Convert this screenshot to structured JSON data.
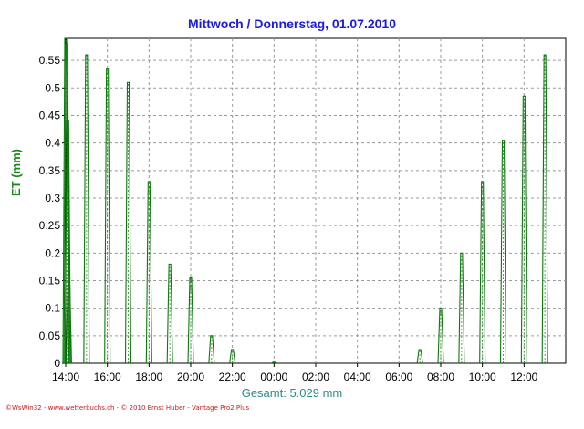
{
  "chart_data": {
    "type": "line",
    "title": "Mittwoch / Donnerstag, 01.07.2010",
    "ylabel": "ET (mm)",
    "xlabel": "",
    "summary_label": "Gesamt: 5.029 mm",
    "credit": "©WsWin32 - www.wetterbuchs.ch - © 2010 Ernst Huber - Vantage Pro2 Plus",
    "ylim": [
      0,
      0.59
    ],
    "y_ticks": [
      0,
      0.05,
      0.1,
      0.15,
      0.2,
      0.25,
      0.3,
      0.35,
      0.4,
      0.45,
      0.5,
      0.55
    ],
    "y_tick_labels": [
      "0",
      "0.05",
      "0.1",
      "0.15",
      "0.2",
      "0.25",
      "0.3",
      "0.35",
      "0.4",
      "0.45",
      "0.5",
      "0.55"
    ],
    "x_tick_labels": [
      "14:00",
      "16:00",
      "18:00",
      "20:00",
      "22:00",
      "00:00",
      "02:00",
      "04:00",
      "06:00",
      "08:00",
      "10:00",
      "12:00"
    ],
    "x_ticks_hours": [
      0,
      2,
      4,
      6,
      8,
      10,
      12,
      14,
      16,
      18,
      20,
      22
    ],
    "x_range_hours": [
      0,
      24
    ],
    "grid": true,
    "colors": {
      "series": "#0a7a0a",
      "title": "#1a1ae6",
      "axis_label": "#1a8a1a",
      "summary": "#2a8a8a",
      "credit": "#cc1a1a",
      "grid": "#9a9a9a"
    },
    "series": [
      {
        "values_hours_offset": [
          0.0,
          0.05,
          0.1,
          0.15,
          1.0,
          2.0,
          3.0,
          4.0,
          5.0,
          6.0,
          7.0,
          8.0,
          10.0,
          17.0,
          18.0,
          19.0,
          20.0,
          21.0,
          22.0,
          23.0
        ],
        "values": [
          0.59,
          0.58,
          0.44,
          0.15,
          0.56,
          0.535,
          0.51,
          0.33,
          0.18,
          0.155,
          0.05,
          0.025,
          0.002,
          0.025,
          0.1,
          0.2,
          0.33,
          0.405,
          0.485,
          0.56
        ]
      }
    ]
  }
}
